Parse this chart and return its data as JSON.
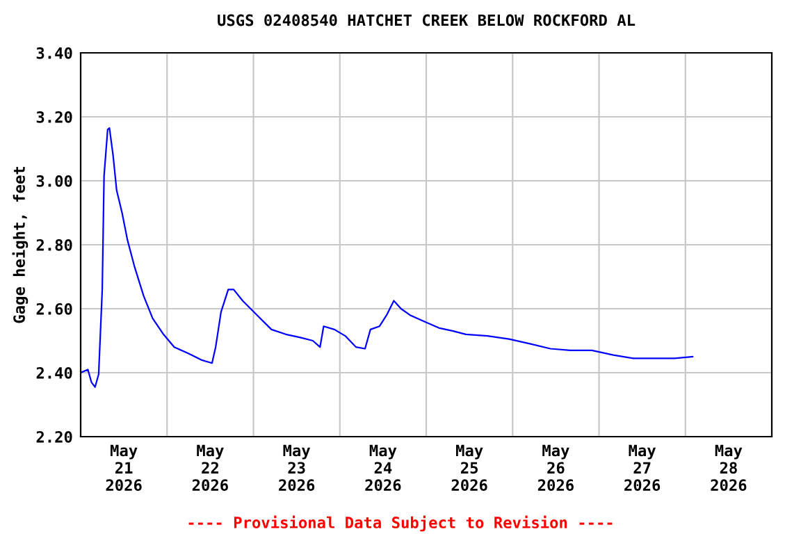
{
  "chart_data": {
    "type": "line",
    "title": "USGS 02408540 HATCHET CREEK BELOW ROCKFORD AL",
    "ylabel": "Gage height, feet",
    "x": [
      "2026-05-21T00:00",
      "2026-05-21T02:00",
      "2026-05-21T03:00",
      "2026-05-21T04:00",
      "2026-05-21T05:00",
      "2026-05-21T06:00",
      "2026-05-21T06:30",
      "2026-05-21T07:30",
      "2026-05-21T08:00",
      "2026-05-21T09:00",
      "2026-05-21T10:00",
      "2026-05-21T11:30",
      "2026-05-21T13:00",
      "2026-05-21T15:00",
      "2026-05-21T17:30",
      "2026-05-21T20:00",
      "2026-05-21T23:00",
      "2026-05-22T02:00",
      "2026-05-22T06:00",
      "2026-05-22T09:30",
      "2026-05-22T12:30",
      "2026-05-22T13:30",
      "2026-05-22T15:00",
      "2026-05-22T17:00",
      "2026-05-22T18:30",
      "2026-05-22T21:00",
      "2026-05-23T01:00",
      "2026-05-23T05:00",
      "2026-05-23T09:00",
      "2026-05-23T13:00",
      "2026-05-23T16:30",
      "2026-05-23T18:30",
      "2026-05-23T19:30",
      "2026-05-23T22:30",
      "2026-05-24T01:30",
      "2026-05-24T04:30",
      "2026-05-24T07:00",
      "2026-05-24T08:30",
      "2026-05-24T11:00",
      "2026-05-24T13:00",
      "2026-05-24T15:00",
      "2026-05-24T17:00",
      "2026-05-24T19:30",
      "2026-05-24T23:30",
      "2026-05-25T03:30",
      "2026-05-25T07:30",
      "2026-05-25T11:00",
      "2026-05-25T17:00",
      "2026-05-25T23:00",
      "2026-05-26T05:00",
      "2026-05-26T10:30",
      "2026-05-26T16:00",
      "2026-05-26T22:00",
      "2026-05-27T04:00",
      "2026-05-27T09:30",
      "2026-05-27T15:30",
      "2026-05-27T21:00",
      "2026-05-28T02:00"
    ],
    "series": [
      {
        "color": "#0000ff",
        "values": [
          2.4,
          2.41,
          2.37,
          2.355,
          2.395,
          2.66,
          3.015,
          3.16,
          3.165,
          3.08,
          2.97,
          2.9,
          2.815,
          2.73,
          2.64,
          2.57,
          2.52,
          2.48,
          2.46,
          2.44,
          2.43,
          2.48,
          2.59,
          2.66,
          2.66,
          2.625,
          2.58,
          2.535,
          2.52,
          2.51,
          2.5,
          2.48,
          2.545,
          2.535,
          2.515,
          2.48,
          2.475,
          2.535,
          2.545,
          2.58,
          2.625,
          2.6,
          2.58,
          2.56,
          2.54,
          2.53,
          2.52,
          2.515,
          2.505,
          2.49,
          2.475,
          2.47,
          2.47,
          2.455,
          2.445,
          2.445,
          2.445,
          2.45
        ]
      }
    ],
    "xlim": [
      "2026-05-21T00:00",
      "2026-05-29T00:00"
    ],
    "xticks": [
      {
        "value": "2026-05-21T12:00",
        "label": "May\n21\n2026"
      },
      {
        "value": "2026-05-22T00:00",
        "label": null
      },
      {
        "value": "2026-05-22T12:00",
        "label": "May\n22\n2026"
      },
      {
        "value": "2026-05-23T00:00",
        "label": null
      },
      {
        "value": "2026-05-23T12:00",
        "label": "May\n23\n2026"
      },
      {
        "value": "2026-05-24T00:00",
        "label": null
      },
      {
        "value": "2026-05-24T12:00",
        "label": "May\n24\n2026"
      },
      {
        "value": "2026-05-25T00:00",
        "label": null
      },
      {
        "value": "2026-05-25T12:00",
        "label": "May\n25\n2026"
      },
      {
        "value": "2026-05-26T00:00",
        "label": null
      },
      {
        "value": "2026-05-26T12:00",
        "label": "May\n26\n2026"
      },
      {
        "value": "2026-05-27T00:00",
        "label": null
      },
      {
        "value": "2026-05-27T12:00",
        "label": "May\n27\n2026"
      },
      {
        "value": "2026-05-28T00:00",
        "label": null
      },
      {
        "value": "2026-05-28T12:00",
        "label": "May\n28\n2026"
      }
    ],
    "ylim": [
      2.2,
      3.4
    ],
    "yticks": [
      {
        "value": 2.2,
        "label": "2.20"
      },
      {
        "value": 2.4,
        "label": "2.40"
      },
      {
        "value": 2.6,
        "label": "2.60"
      },
      {
        "value": 2.8,
        "label": "2.80"
      },
      {
        "value": 3.0,
        "label": "3.00"
      },
      {
        "value": 3.2,
        "label": "3.20"
      },
      {
        "value": 3.4,
        "label": "3.40"
      }
    ],
    "grid": true,
    "annotations": [
      "---- Provisional Data Subject to Revision ----"
    ]
  }
}
